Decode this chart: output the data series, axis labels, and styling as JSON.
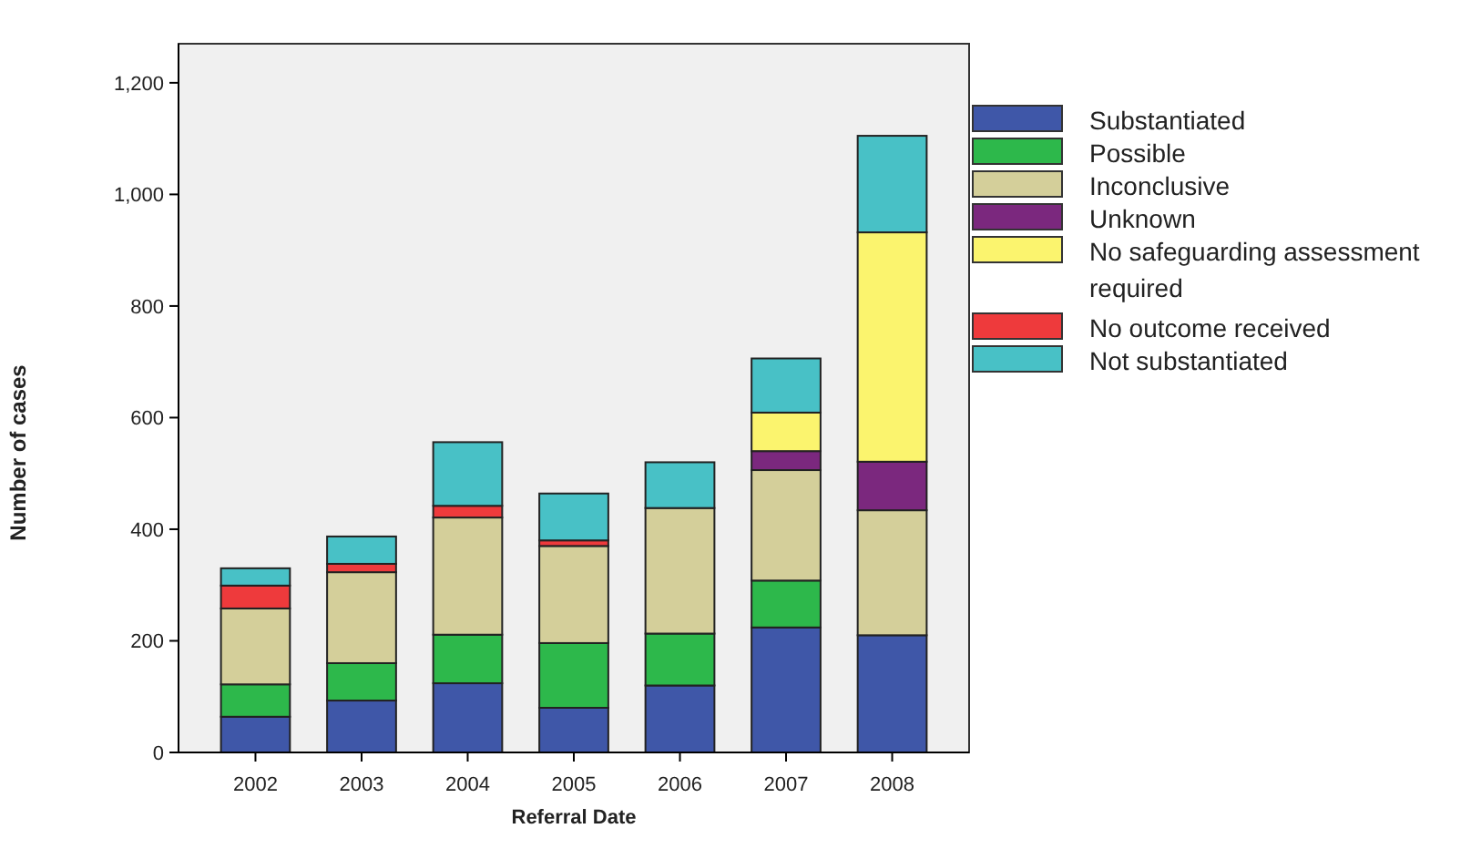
{
  "chart_data": {
    "type": "bar",
    "stacked": true,
    "xlabel": "Referral Date",
    "ylabel": "Number of cases",
    "categories": [
      "2002",
      "2003",
      "2004",
      "2005",
      "2006",
      "2007",
      "2008"
    ],
    "series": [
      {
        "name": "Substantiated",
        "color": "#3f57a8",
        "values": [
          64,
          93,
          124,
          80,
          120,
          224,
          210
        ]
      },
      {
        "name": "Possible",
        "color": "#2db84b",
        "values": [
          58,
          67,
          87,
          116,
          93,
          84,
          0
        ]
      },
      {
        "name": "Inconclusive",
        "color": "#d4cf9a",
        "values": [
          136,
          163,
          210,
          174,
          225,
          198,
          224
        ]
      },
      {
        "name": "Unknown",
        "color": "#7b287e",
        "values": [
          0,
          0,
          0,
          0,
          0,
          34,
          87
        ]
      },
      {
        "name": "No safeguarding assessment required",
        "color": "#fbf46e",
        "values": [
          0,
          0,
          0,
          0,
          0,
          69,
          411
        ]
      },
      {
        "name": "No outcome received",
        "color": "#ee3a3c",
        "values": [
          41,
          15,
          21,
          10,
          0,
          0,
          0
        ]
      },
      {
        "name": "Not substantiated",
        "color": "#48c1c6",
        "values": [
          31,
          49,
          114,
          84,
          82,
          97,
          173
        ]
      }
    ],
    "ylim": [
      0,
      1270
    ],
    "yticks": [
      0,
      200,
      400,
      600,
      800,
      {
        "value": 1000,
        "label": "1,000"
      },
      {
        "value": 1200,
        "label": "1,200"
      }
    ],
    "grid": false,
    "legend": "right"
  }
}
